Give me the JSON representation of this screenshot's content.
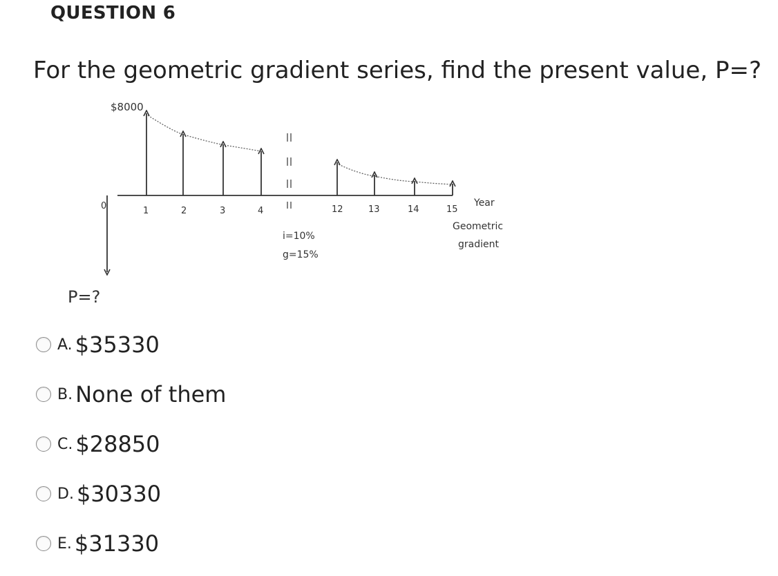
{
  "question": {
    "heading": "QUESTION 6",
    "text": "For the geometric gradient series, find the present value, P=?"
  },
  "diagram": {
    "top_label": "$8000",
    "axis_label": "Year",
    "series_label_line1": "Geometric",
    "series_label_line2": "gradient",
    "interest_rate": "i=10%",
    "growth_rate": "g=15%",
    "present_value_label": "P=?",
    "periods": [
      "0",
      "1",
      "2",
      "3",
      "4",
      "12",
      "13",
      "14",
      "15"
    ]
  },
  "options": [
    {
      "letter": "A.",
      "text": "$35330"
    },
    {
      "letter": "B.",
      "text": "None of them"
    },
    {
      "letter": "C.",
      "text": "$28850"
    },
    {
      "letter": "D.",
      "text": "$30330"
    },
    {
      "letter": "E.",
      "text": "$31330"
    }
  ]
}
